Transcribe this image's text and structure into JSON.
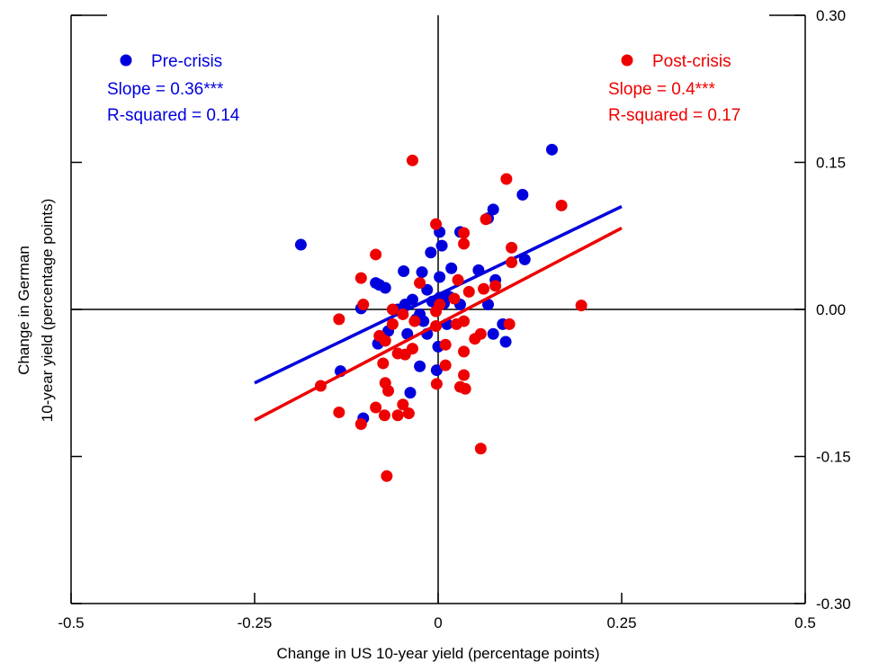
{
  "chart_data": {
    "type": "scatter",
    "xlabel": "Change in US 10-year yield (percentage points)",
    "ylabel_lines": [
      "Change in German",
      "10-year yield (percentage points)"
    ],
    "xlim": [
      -0.5,
      0.5
    ],
    "ylim": [
      -0.3,
      0.3
    ],
    "x_ticks": [
      -0.5,
      -0.25,
      0,
      0.25,
      0.5
    ],
    "x_tick_labels": [
      "-0.5",
      "-0.25",
      "0",
      "0.25",
      "0.5"
    ],
    "y_ticks": [
      0.3,
      0.15,
      0.0,
      -0.15,
      -0.3
    ],
    "y_tick_labels": [
      "0.30",
      "0.15",
      "0.00",
      "-0.15",
      "-0.30"
    ],
    "series": [
      {
        "name": "Pre-crisis",
        "color": "#0000dd",
        "slope_label": "Slope = 0.36***",
        "r2_label": "R-squared = 0.14",
        "fit": {
          "x": [
            -0.25,
            0.25
          ],
          "y": [
            -0.075,
            0.105
          ]
        },
        "points": [
          [
            0.155,
            0.163
          ],
          [
            0.115,
            0.117
          ],
          [
            0.075,
            0.102
          ],
          [
            0.068,
            0.093
          ],
          [
            0.118,
            0.051
          ],
          [
            0.002,
            0.079
          ],
          [
            0.03,
            0.079
          ],
          [
            0.005,
            0.065
          ],
          [
            -0.187,
            0.066
          ],
          [
            -0.01,
            0.058
          ],
          [
            0.018,
            0.042
          ],
          [
            0.055,
            0.04
          ],
          [
            -0.047,
            0.039
          ],
          [
            -0.022,
            0.038
          ],
          [
            0.002,
            0.033
          ],
          [
            0.078,
            0.03
          ],
          [
            -0.08,
            0.025
          ],
          [
            -0.072,
            0.022
          ],
          [
            -0.085,
            0.027
          ],
          [
            -0.015,
            0.02
          ],
          [
            0.015,
            0.013
          ],
          [
            -0.035,
            0.01
          ],
          [
            -0.008,
            0.008
          ],
          [
            0.002,
            0.012
          ],
          [
            0.008,
            0.006
          ],
          [
            -0.105,
            0.001
          ],
          [
            -0.045,
            0.005
          ],
          [
            0.03,
            0.005
          ],
          [
            0.068,
            0.005
          ],
          [
            -0.055,
            0.0
          ],
          [
            -0.025,
            -0.005
          ],
          [
            0.012,
            -0.015
          ],
          [
            -0.02,
            -0.012
          ],
          [
            -0.03,
            -0.01
          ],
          [
            0.088,
            -0.015
          ],
          [
            -0.068,
            -0.022
          ],
          [
            0.075,
            -0.025
          ],
          [
            -0.015,
            -0.025
          ],
          [
            -0.042,
            -0.025
          ],
          [
            0.092,
            -0.033
          ],
          [
            -0.082,
            -0.035
          ],
          [
            0.0,
            -0.038
          ],
          [
            -0.025,
            -0.058
          ],
          [
            -0.133,
            -0.063
          ],
          [
            -0.002,
            -0.062
          ],
          [
            -0.038,
            -0.085
          ],
          [
            -0.102,
            -0.111
          ]
        ]
      },
      {
        "name": "Post-crisis",
        "color": "#ee0000",
        "slope_label": "Slope = 0.4***",
        "r2_label": "R-squared = 0.17",
        "fit": {
          "x": [
            -0.25,
            0.25
          ],
          "y": [
            -0.113,
            0.083
          ]
        },
        "points": [
          [
            -0.035,
            0.152
          ],
          [
            0.093,
            0.133
          ],
          [
            0.168,
            0.106
          ],
          [
            -0.003,
            0.087
          ],
          [
            0.035,
            0.078
          ],
          [
            0.065,
            0.092
          ],
          [
            0.035,
            0.067
          ],
          [
            0.1,
            0.063
          ],
          [
            -0.085,
            0.056
          ],
          [
            0.1,
            0.048
          ],
          [
            -0.105,
            0.032
          ],
          [
            0.027,
            0.03
          ],
          [
            -0.025,
            0.027
          ],
          [
            0.042,
            0.018
          ],
          [
            0.078,
            0.024
          ],
          [
            0.062,
            0.021
          ],
          [
            0.022,
            0.011
          ],
          [
            -0.102,
            0.005
          ],
          [
            0.002,
            0.005
          ],
          [
            -0.062,
            0.0
          ],
          [
            -0.003,
            -0.002
          ],
          [
            -0.048,
            -0.005
          ],
          [
            0.195,
            0.004
          ],
          [
            -0.135,
            -0.01
          ],
          [
            -0.032,
            -0.012
          ],
          [
            0.035,
            -0.012
          ],
          [
            0.025,
            -0.015
          ],
          [
            -0.062,
            -0.015
          ],
          [
            0.097,
            -0.015
          ],
          [
            -0.003,
            -0.017
          ],
          [
            -0.08,
            -0.027
          ],
          [
            0.058,
            -0.025
          ],
          [
            0.05,
            -0.03
          ],
          [
            -0.072,
            -0.032
          ],
          [
            0.01,
            -0.036
          ],
          [
            -0.055,
            -0.045
          ],
          [
            -0.045,
            -0.046
          ],
          [
            -0.035,
            -0.04
          ],
          [
            0.035,
            -0.043
          ],
          [
            0.01,
            -0.057
          ],
          [
            -0.075,
            -0.055
          ],
          [
            0.035,
            -0.067
          ],
          [
            -0.072,
            -0.075
          ],
          [
            -0.002,
            -0.076
          ],
          [
            0.03,
            -0.079
          ],
          [
            -0.16,
            -0.078
          ],
          [
            0.037,
            -0.081
          ],
          [
            -0.068,
            -0.083
          ],
          [
            -0.048,
            -0.097
          ],
          [
            -0.085,
            -0.1
          ],
          [
            -0.135,
            -0.105
          ],
          [
            -0.073,
            -0.108
          ],
          [
            -0.04,
            -0.106
          ],
          [
            -0.055,
            -0.108
          ],
          [
            -0.105,
            -0.117
          ],
          [
            0.058,
            -0.142
          ],
          [
            -0.07,
            -0.17
          ]
        ]
      }
    ],
    "grid": false,
    "legend": [
      "top-left",
      "top-right"
    ]
  }
}
